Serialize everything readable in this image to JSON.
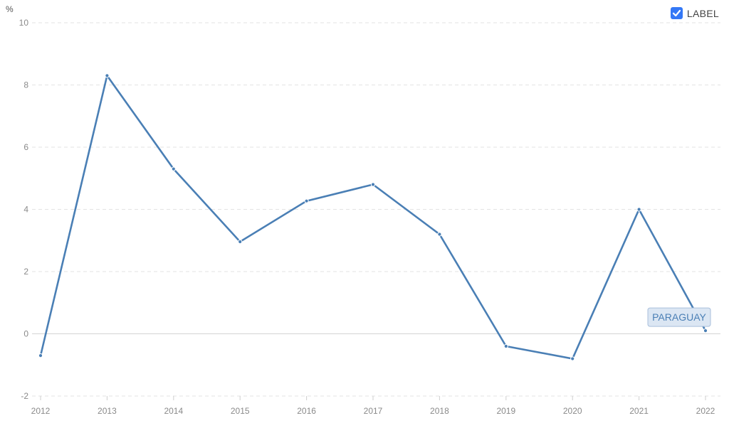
{
  "chart_data": {
    "type": "line",
    "unit_label": "%",
    "x": [
      "2012",
      "2013",
      "2014",
      "2015",
      "2016",
      "2017",
      "2018",
      "2019",
      "2020",
      "2021",
      "2022"
    ],
    "series": [
      {
        "name": "PARAGUAY",
        "values": [
          -0.7,
          8.3,
          5.3,
          2.96,
          4.27,
          4.8,
          3.2,
          -0.4,
          -0.8,
          4.0,
          0.1
        ],
        "color": "#4a7fb5"
      }
    ],
    "ylim": [
      -2,
      10
    ],
    "yticks": [
      -2,
      0,
      2,
      4,
      6,
      8,
      10
    ],
    "grid": true,
    "series_label_box": "PARAGUAY"
  },
  "legend": {
    "checkbox_label": "LABEL",
    "checked": true,
    "color": "#3478f6"
  }
}
